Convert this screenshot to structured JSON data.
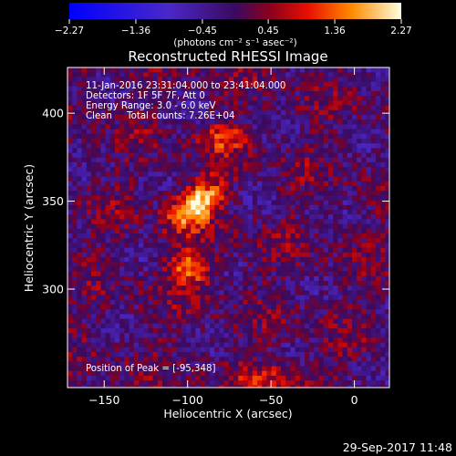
{
  "chart_data": {
    "type": "heatmap",
    "title": "Reconstructed RHESSI Image",
    "xlabel": "Heliocentric X (arcsec)",
    "ylabel": "Heliocentric Y (arcsec)",
    "xlim": [
      -172,
      21
    ],
    "ylim": [
      244,
      426
    ],
    "x_ticks": [
      -150,
      -100,
      -50,
      0
    ],
    "y_ticks": [
      300,
      350,
      400
    ],
    "x_tick_labels": [
      "−150",
      "−100",
      "−50",
      "0"
    ],
    "y_tick_labels": [
      "300",
      "350",
      "400"
    ],
    "colorbar": {
      "min": -2.27,
      "max": 2.27,
      "ticks": [
        -2.27,
        -1.36,
        -0.45,
        0.45,
        1.36,
        2.27
      ],
      "tick_labels": [
        "−2.27",
        "−1.36",
        "−0.45",
        "0.45",
        "1.36",
        "2.27"
      ],
      "units_label": "(photons cm⁻² s⁻¹ asec⁻²)"
    },
    "annotations": [
      "11-Jan-2016 23:31:04.000 to 23:41:04.000",
      "Detectors: 1F 5F 7F, Att 0",
      "Energy Range: 3.0 - 6.0 keV",
      "Clean     Total counts: 7.26E+04",
      "Position of Peak = [-95,348]"
    ],
    "sources": [
      {
        "x": -95,
        "y": 348,
        "peak": 2.27,
        "sigma_x": 12,
        "sigma_y": 7,
        "angle_deg": -35
      },
      {
        "x": -98,
        "y": 312,
        "peak": 1.45,
        "sigma_x": 9,
        "sigma_y": 7,
        "angle_deg": 0
      },
      {
        "x": -78,
        "y": 386,
        "peak": 1.0,
        "sigma_x": 10,
        "sigma_y": 6,
        "angle_deg": 0
      },
      {
        "x": -48,
        "y": 250,
        "peak": 0.9,
        "sigma_x": 16,
        "sigma_y": 6,
        "angle_deg": 0
      }
    ],
    "grid": false
  },
  "footer": {
    "timestamp": "29-Sep-2017 11:48"
  },
  "colors": {
    "background": "#000000",
    "foreground": "#ffffff"
  }
}
